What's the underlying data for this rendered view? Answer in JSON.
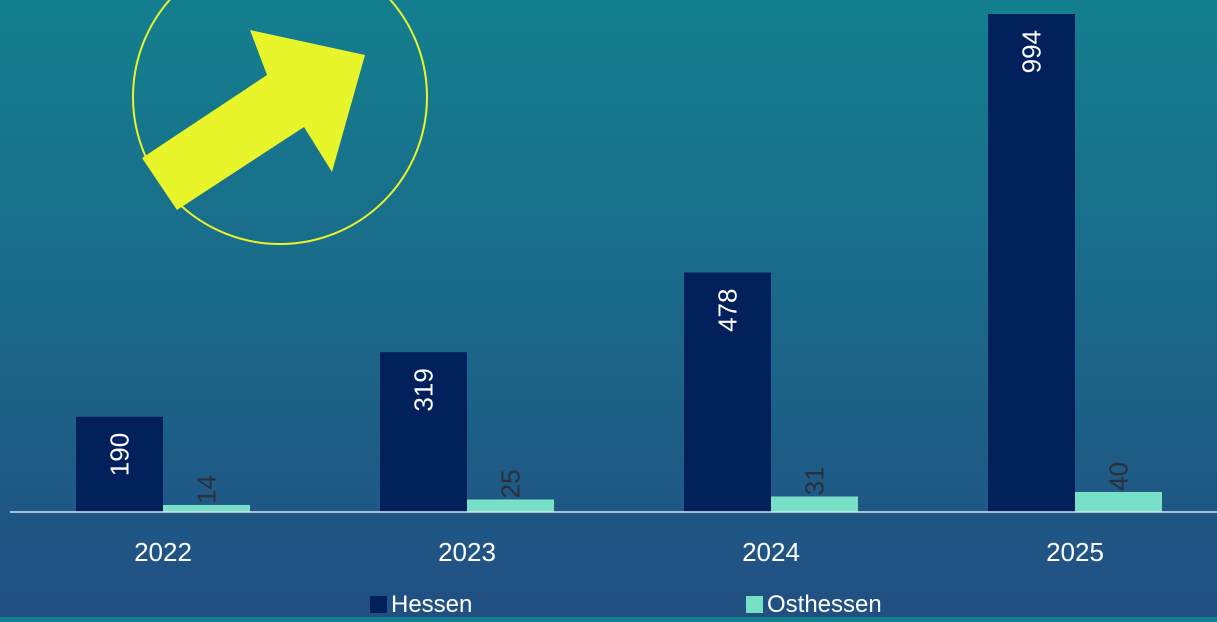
{
  "chart_data": {
    "type": "bar",
    "title": "",
    "xlabel": "",
    "ylabel": "",
    "categories": [
      "2022",
      "2023",
      "2024",
      "2025"
    ],
    "series": [
      {
        "name": "Hessen",
        "color": "#01205c",
        "values": [
          190,
          319,
          478,
          994
        ]
      },
      {
        "name": "Osthessen",
        "color": "#79e0c8",
        "values": [
          14,
          25,
          31,
          40
        ]
      }
    ],
    "ylim": [
      0,
      994
    ],
    "grid": false,
    "legend": "bottom-center",
    "data_labels": "rotated",
    "decoration": {
      "icon": "trend-up-arrow-icon",
      "color": "#e8f52b"
    }
  }
}
